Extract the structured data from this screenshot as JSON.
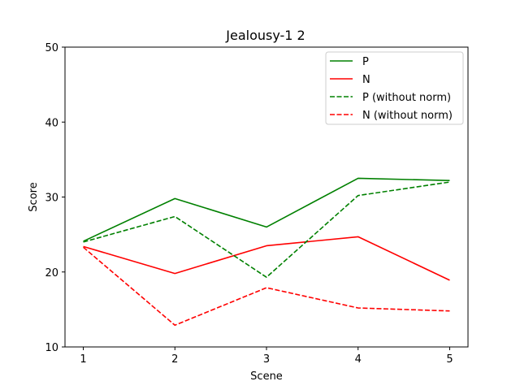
{
  "chart_data": {
    "type": "line",
    "title": "Jealousy-1 2",
    "xlabel": "Scene",
    "ylabel": "Score",
    "x": [
      1,
      2,
      3,
      4,
      5
    ],
    "xlim": [
      0.8,
      5.2
    ],
    "ylim": [
      10,
      50
    ],
    "xticks": [
      1,
      2,
      3,
      4,
      5
    ],
    "yticks": [
      10,
      20,
      30,
      40,
      50
    ],
    "grid": false,
    "legend_position": "top-right",
    "series": [
      {
        "name": "P",
        "values": [
          24.1,
          29.8,
          26.0,
          32.5,
          32.2
        ],
        "color": "#008000",
        "dash": "solid"
      },
      {
        "name": "N",
        "values": [
          23.4,
          19.8,
          23.5,
          24.7,
          18.9
        ],
        "color": "#ff0000",
        "dash": "solid"
      },
      {
        "name": "P (without norm)",
        "values": [
          24.0,
          27.4,
          19.3,
          30.2,
          32.0
        ],
        "color": "#008000",
        "dash": "dashed"
      },
      {
        "name": "N (without norm)",
        "values": [
          23.3,
          12.9,
          17.9,
          15.2,
          14.8
        ],
        "color": "#ff0000",
        "dash": "dashed"
      }
    ]
  }
}
